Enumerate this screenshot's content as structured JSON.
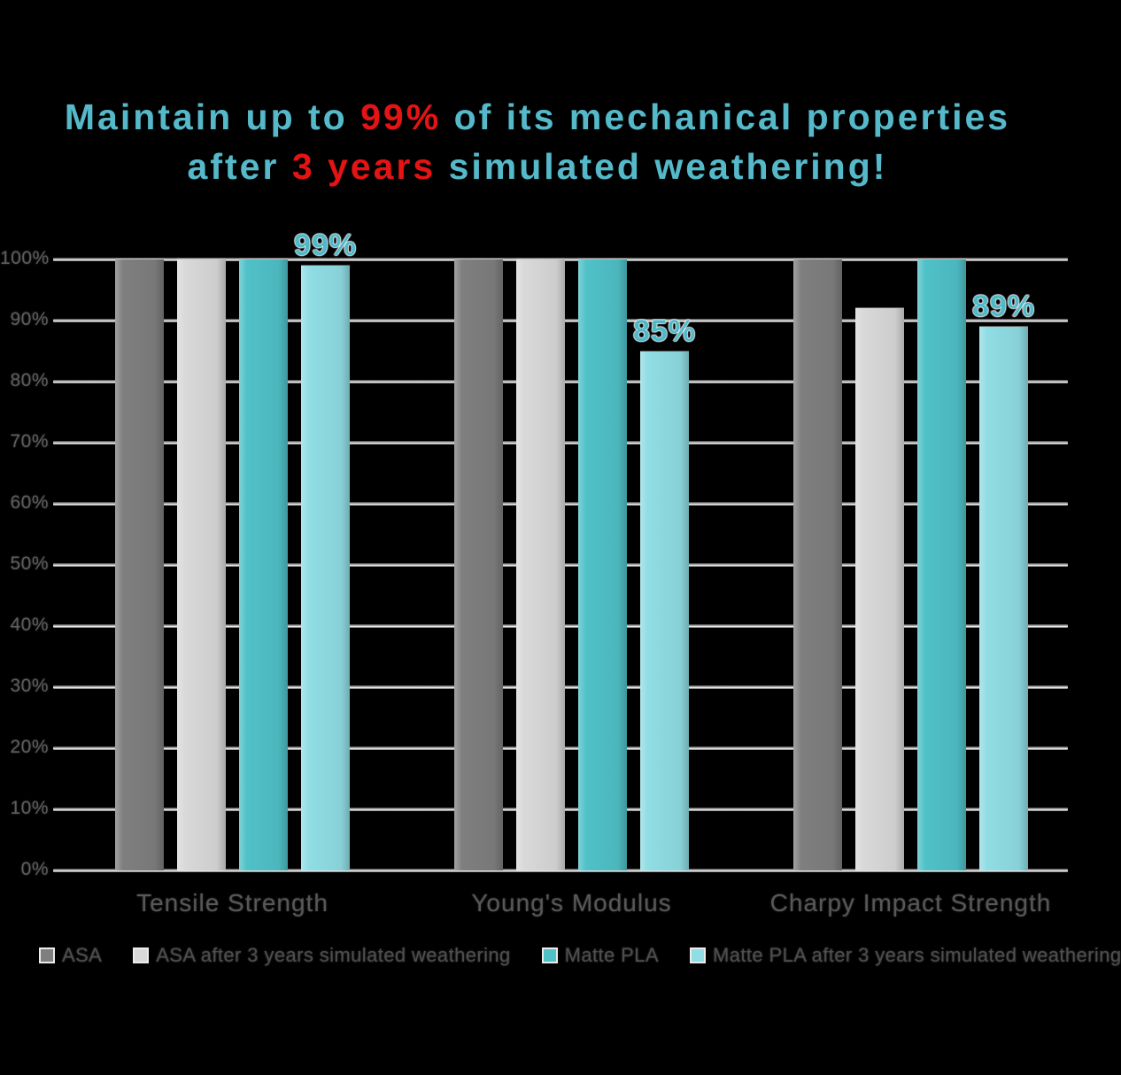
{
  "title": {
    "line1": [
      {
        "text": "Maintain up to ",
        "emphasis": false
      },
      {
        "text": "99%",
        "emphasis": true
      },
      {
        "text": " of its mechanical properties",
        "emphasis": false
      }
    ],
    "line2": [
      {
        "text": "after ",
        "emphasis": false
      },
      {
        "text": "3 years",
        "emphasis": true
      },
      {
        "text": " simulated weathering!",
        "emphasis": false
      }
    ],
    "teal_color": "#55b9c9",
    "red_color": "#e41414"
  },
  "chart_data": {
    "type": "bar",
    "categories": [
      "Tensile Strength",
      "Young's Modulus",
      "Charpy Impact Strength"
    ],
    "series": [
      {
        "name": "ASA",
        "color": "#7f7f7f",
        "values": [
          100,
          100,
          100
        ],
        "data_labels": [
          null,
          null,
          null
        ]
      },
      {
        "name": "ASA after 3 years simulated weathering",
        "color": "#d9d9d9",
        "values": [
          100,
          100,
          92
        ],
        "data_labels": [
          null,
          null,
          null
        ]
      },
      {
        "name": "Matte PLA",
        "color": "#50c1c8",
        "values": [
          100,
          100,
          100
        ],
        "data_labels": [
          null,
          null,
          null
        ]
      },
      {
        "name": "Matte PLA after 3 years simulated weathering",
        "color": "#90dde4",
        "values": [
          99,
          85,
          89
        ],
        "data_labels": [
          "99%",
          "85%",
          "89%"
        ]
      }
    ],
    "xlabel": "",
    "ylabel": "",
    "ylim": [
      0,
      100
    ],
    "ytick_step": 10,
    "yticks": [
      "0%",
      "10%",
      "20%",
      "30%",
      "40%",
      "50%",
      "60%",
      "70%",
      "80%",
      "90%",
      "100%"
    ],
    "grid": true,
    "legend_position": "bottom",
    "data_label_color": "#4fb9c9",
    "background_color": "#000000"
  }
}
